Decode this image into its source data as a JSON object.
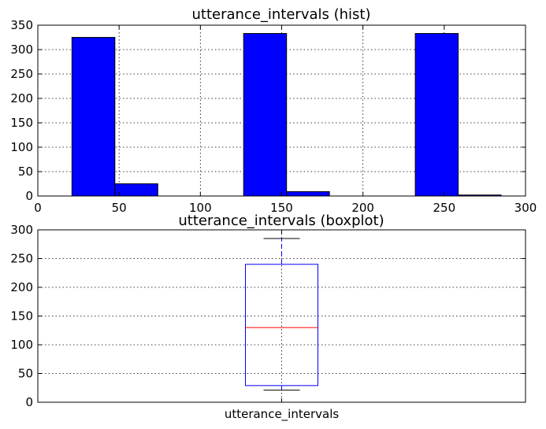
{
  "chart_data": [
    {
      "type": "bar",
      "title": "utterance_intervals (hist)",
      "xlim": [
        0,
        300
      ],
      "ylim": [
        0,
        350
      ],
      "xticks": [
        0,
        50,
        100,
        150,
        200,
        250,
        300
      ],
      "yticks": [
        0,
        50,
        100,
        150,
        200,
        250,
        300,
        350
      ],
      "grid": true,
      "bins": [
        {
          "x0": 21,
          "x1": 47.4,
          "count": 325
        },
        {
          "x0": 47.4,
          "x1": 73.8,
          "count": 25
        },
        {
          "x0": 73.8,
          "x1": 100.2,
          "count": 0
        },
        {
          "x0": 100.2,
          "x1": 126.6,
          "count": 0
        },
        {
          "x0": 126.6,
          "x1": 153.0,
          "count": 333
        },
        {
          "x0": 153.0,
          "x1": 179.4,
          "count": 9
        },
        {
          "x0": 179.4,
          "x1": 205.8,
          "count": 0
        },
        {
          "x0": 205.8,
          "x1": 232.2,
          "count": 0
        },
        {
          "x0": 232.2,
          "x1": 258.6,
          "count": 333
        },
        {
          "x0": 258.6,
          "x1": 285,
          "count": 2
        }
      ],
      "bar_color": "#0000ff"
    },
    {
      "type": "boxplot",
      "title": "utterance_intervals (boxplot)",
      "categories": [
        "utterance_intervals"
      ],
      "ylim": [
        0,
        300
      ],
      "yticks": [
        0,
        50,
        100,
        150,
        200,
        250,
        300
      ],
      "grid": true,
      "box": {
        "whisker_low": 21,
        "q1": 29,
        "median": 130,
        "q3": 240,
        "whisker_high": 285
      },
      "box_color": "#0000ff",
      "median_color": "#ff0000"
    }
  ]
}
